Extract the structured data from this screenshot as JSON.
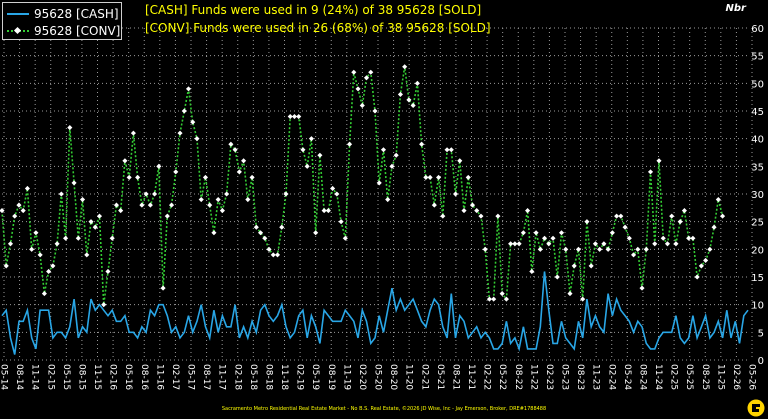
{
  "legend": {
    "cash_label": "95628 [CASH]",
    "conv_label": "95628 [CONV]"
  },
  "annotations": {
    "cash": "[CASH] Funds were used in 9 (24%) of 38 95628 [SOLD]",
    "conv": "[CONV] Funds were used in 26 (68%) of 38 95628 [SOLD]"
  },
  "unit_label": "Nbr",
  "footer": "Sacramento Metro Residential Real Estate Market - No B.S. Real Estate, ©2026 JD Wise, Inc - Jay Emerson, Broker, DRE#1788488",
  "colors": {
    "background": "#000000",
    "grid": "#9a9a9a",
    "cash": "#29a6e6",
    "conv": "#33cc33",
    "conv_marker": "#ffffff",
    "annotation": "#ffff00",
    "text": "#ffffff"
  },
  "chart_data": {
    "type": "line",
    "ylim": [
      0,
      60
    ],
    "yticks": [
      0,
      5,
      10,
      15,
      20,
      25,
      30,
      35,
      40,
      45,
      50,
      55,
      60
    ],
    "y_axis_side": "right",
    "grid": true,
    "legend_position": "top-left",
    "x_tick_labels": [
      "05-14",
      "08-14",
      "11-14",
      "02-15",
      "05-15",
      "08-15",
      "11-15",
      "02-16",
      "05-16",
      "08-16",
      "11-16",
      "02-17",
      "05-17",
      "08-17",
      "11-17",
      "02-18",
      "05-18",
      "08-18",
      "11-18",
      "02-19",
      "05-19",
      "08-19",
      "11-19",
      "02-20",
      "05-20",
      "08-20",
      "11-20",
      "02-21",
      "05-21",
      "08-21",
      "11-21",
      "02-22",
      "05-22",
      "08-22",
      "11-22",
      "02-23",
      "05-23",
      "08-23",
      "11-23",
      "02-24",
      "05-24",
      "08-24",
      "11-24",
      "02-25",
      "05-25",
      "08-25",
      "11-25",
      "02-26",
      "05-26"
    ],
    "series": [
      {
        "name": "95628 [CASH]",
        "values": [
          8,
          9,
          4,
          1,
          7,
          7,
          9,
          4,
          2,
          9,
          9,
          9,
          4,
          5,
          5,
          4,
          6,
          11,
          4,
          6,
          5,
          11,
          9,
          10,
          9,
          8,
          9,
          7,
          7,
          8,
          5,
          5,
          4,
          6,
          5,
          9,
          8,
          10,
          10,
          8,
          5,
          6,
          4,
          5,
          8,
          5,
          7,
          10,
          6,
          4,
          9,
          5,
          8,
          6,
          6,
          10,
          4,
          6,
          4,
          7,
          5,
          9,
          10,
          8,
          7,
          8,
          10,
          6,
          4,
          5,
          8,
          9,
          4,
          8,
          6,
          3,
          9,
          8,
          7,
          7,
          7,
          9,
          8,
          7,
          4,
          9,
          7,
          3,
          4,
          8,
          5,
          9,
          13,
          9,
          11,
          9,
          10,
          11,
          9,
          7,
          6,
          9,
          11,
          10,
          6,
          4,
          12,
          4,
          8,
          7,
          4,
          5,
          6,
          4,
          5,
          4,
          2,
          2,
          3,
          7,
          3,
          4,
          2,
          6,
          2,
          2,
          2,
          6,
          16,
          9,
          3,
          3,
          7,
          4,
          3,
          2,
          7,
          4,
          11,
          6,
          8,
          6,
          5,
          12,
          8,
          11,
          9,
          8,
          7,
          5,
          7,
          6,
          3,
          2,
          2,
          4,
          5,
          5,
          5,
          8,
          4,
          3,
          4,
          8,
          4,
          6,
          8,
          4,
          5,
          7,
          4,
          9,
          4,
          7,
          3,
          8,
          9
        ]
      },
      {
        "name": "95628 [CONV]",
        "values": [
          27,
          17,
          21,
          26,
          28,
          27,
          31,
          20,
          23,
          19,
          12,
          16,
          17,
          21,
          30,
          22,
          42,
          32,
          22,
          29,
          19,
          25,
          24,
          26,
          10,
          16,
          22,
          28,
          27,
          36,
          33,
          41,
          33,
          28,
          30,
          28,
          30,
          35,
          13,
          26,
          28,
          34,
          41,
          45,
          49,
          43,
          40,
          29,
          33,
          28,
          23,
          29,
          27,
          30,
          39,
          38,
          34,
          36,
          29,
          33,
          24,
          23,
          22,
          20,
          19,
          19,
          24,
          30,
          44,
          44,
          44,
          38,
          35,
          40,
          23,
          37,
          27,
          27,
          31,
          30,
          25,
          22,
          39,
          52,
          49,
          46,
          51,
          52,
          45,
          32,
          38,
          29,
          35,
          37,
          48,
          53,
          47,
          46,
          50,
          39,
          33,
          33,
          28,
          33,
          26,
          38,
          38,
          30,
          36,
          27,
          33,
          28,
          27,
          26,
          20,
          11,
          11,
          26,
          12,
          11,
          21,
          21,
          21,
          23,
          27,
          16,
          23,
          20,
          22,
          21,
          22,
          15,
          23,
          20,
          12,
          17,
          20,
          11,
          25,
          17,
          21,
          20,
          21,
          20,
          23,
          26,
          26,
          24,
          22,
          19,
          20,
          13,
          20,
          34,
          21,
          36,
          22,
          21,
          26,
          21,
          25,
          27,
          22,
          22,
          15,
          17,
          18,
          20,
          24,
          29,
          26
        ]
      }
    ]
  }
}
